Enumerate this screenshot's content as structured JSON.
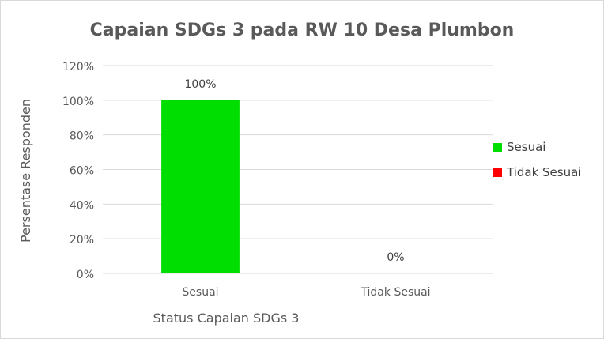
{
  "chart_data": {
    "type": "bar",
    "title": "Capaian SDGs 3 pada RW 10 Desa Plumbon",
    "xlabel": "Status Capaian SDGs 3",
    "ylabel": "Persentase Responden",
    "categories": [
      "Sesuai",
      "Tidak Sesuai"
    ],
    "values": [
      100,
      0
    ],
    "data_labels": [
      "100%",
      "0%"
    ],
    "colors": [
      "#00dd00",
      "#ff0000"
    ],
    "ylim": [
      0,
      120
    ],
    "yticks": [
      0,
      20,
      40,
      60,
      80,
      100,
      120
    ],
    "ytick_labels": [
      "0%",
      "20%",
      "40%",
      "60%",
      "80%",
      "100%",
      "120%"
    ],
    "grid": true,
    "legend": {
      "placement": "right",
      "entries": [
        "Sesuai",
        "Tidak Sesuai"
      ]
    }
  }
}
